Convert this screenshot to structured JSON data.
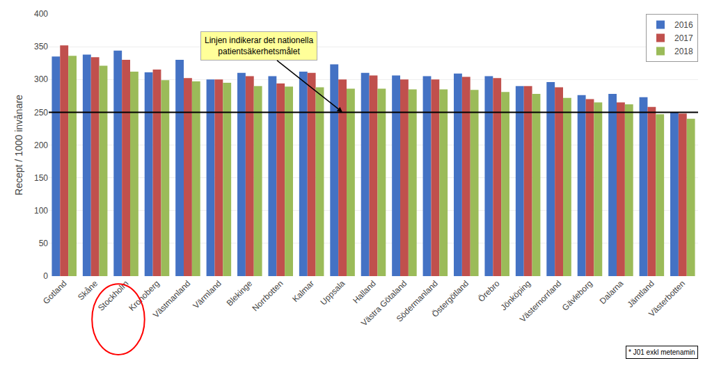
{
  "chart_data": {
    "type": "bar",
    "categories": [
      "Gotland",
      "Skåne",
      "Stockholm",
      "Kronoberg",
      "Västmanland",
      "Värmland",
      "Blekinge",
      "Norrbotten",
      "Kalmar",
      "Uppsala",
      "Halland",
      "Västra Götaland",
      "Södermanland",
      "Östergötland",
      "Örebro",
      "Jönköping",
      "Västernorrland",
      "Gävleborg",
      "Dalarna",
      "Jämtland",
      "Västerbotten"
    ],
    "series": [
      {
        "name": "2016",
        "color": "#4472C4",
        "values": [
          335,
          338,
          344,
          311,
          330,
          300,
          310,
          305,
          312,
          323,
          310,
          306,
          305,
          309,
          305,
          290,
          296,
          276,
          278,
          273,
          250
        ]
      },
      {
        "name": "2017",
        "color": "#C0504D",
        "values": [
          352,
          334,
          330,
          315,
          302,
          300,
          305,
          294,
          310,
          300,
          306,
          300,
          300,
          304,
          302,
          290,
          288,
          270,
          265,
          258,
          248
        ]
      },
      {
        "name": "2018",
        "color": "#9BBB59",
        "values": [
          336,
          321,
          312,
          299,
          297,
          295,
          290,
          289,
          288,
          286,
          286,
          285,
          285,
          284,
          281,
          278,
          272,
          265,
          262,
          247,
          240
        ]
      }
    ],
    "ylabel": "Recept / 1000 invånare",
    "ylim": [
      0,
      400
    ],
    "yticks": [
      0,
      50,
      100,
      150,
      200,
      250,
      300,
      350,
      400
    ],
    "grid": true,
    "legend": "upper right",
    "hline": 250,
    "annotation": "Linjen indikerar det nationella\npatientsäkerhetsmålet",
    "footnote": "* J01 exkl metenamin"
  }
}
